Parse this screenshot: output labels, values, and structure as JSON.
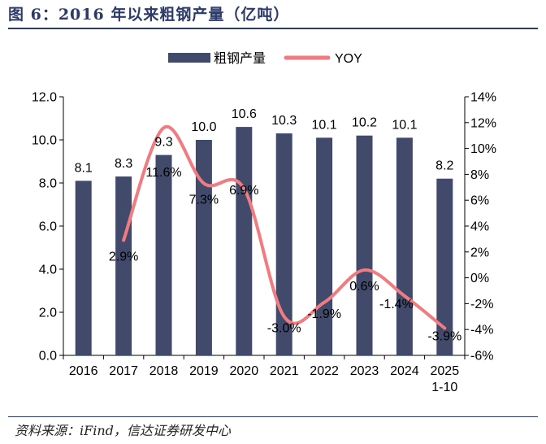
{
  "title": "图 6：2016 年以来粗钢产量（亿吨）",
  "source": "资料来源：iFind，信达证券研发中心",
  "colors": {
    "bar": "#414a6b",
    "line": "#f07b80",
    "title": "#2b3a67"
  },
  "chart_data": {
    "type": "bar+line",
    "title": "图 6：2016 年以来粗钢产量（亿吨）",
    "categories": [
      "2016",
      "2017",
      "2018",
      "2019",
      "2020",
      "2021",
      "2022",
      "2023",
      "2024",
      "2025\n1-10"
    ],
    "category_labels": [
      [
        "2016"
      ],
      [
        "2017"
      ],
      [
        "2018"
      ],
      [
        "2019"
      ],
      [
        "2020"
      ],
      [
        "2021"
      ],
      [
        "2022"
      ],
      [
        "2023"
      ],
      [
        "2024"
      ],
      [
        "2025",
        "1-10"
      ]
    ],
    "series": [
      {
        "name": "粗钢产量",
        "type": "bar",
        "axis": "left",
        "values": [
          8.1,
          8.3,
          9.3,
          10.0,
          10.6,
          10.3,
          10.1,
          10.2,
          10.1,
          8.2
        ],
        "labels": [
          "8.1",
          "8.3",
          "9.3",
          "10.0",
          "10.6",
          "10.3",
          "10.1",
          "10.2",
          "10.1",
          "8.2"
        ]
      },
      {
        "name": "YOY",
        "type": "line",
        "axis": "right",
        "values": [
          null,
          2.9,
          11.6,
          7.3,
          6.9,
          -3.0,
          -1.9,
          0.6,
          -1.4,
          -3.9
        ],
        "labels": [
          "",
          "2.9%",
          "11.6%",
          "7.3%",
          "6.9%",
          "-3.0%",
          "-1.9%",
          "0.6%",
          "-1.4%",
          "-3.9%"
        ]
      }
    ],
    "y_left": {
      "min": 0,
      "max": 12,
      "step": 2,
      "ticks": [
        "0.0",
        "2.0",
        "4.0",
        "6.0",
        "8.0",
        "10.0",
        "12.0"
      ]
    },
    "y_right": {
      "min": -6,
      "max": 14,
      "step": 2,
      "ticks": [
        "-6%",
        "-4%",
        "-2%",
        "0%",
        "2%",
        "4%",
        "6%",
        "8%",
        "10%",
        "12%",
        "14%"
      ]
    },
    "legend": {
      "position": "top-center",
      "items": [
        "粗钢产量",
        "YOY"
      ]
    }
  }
}
